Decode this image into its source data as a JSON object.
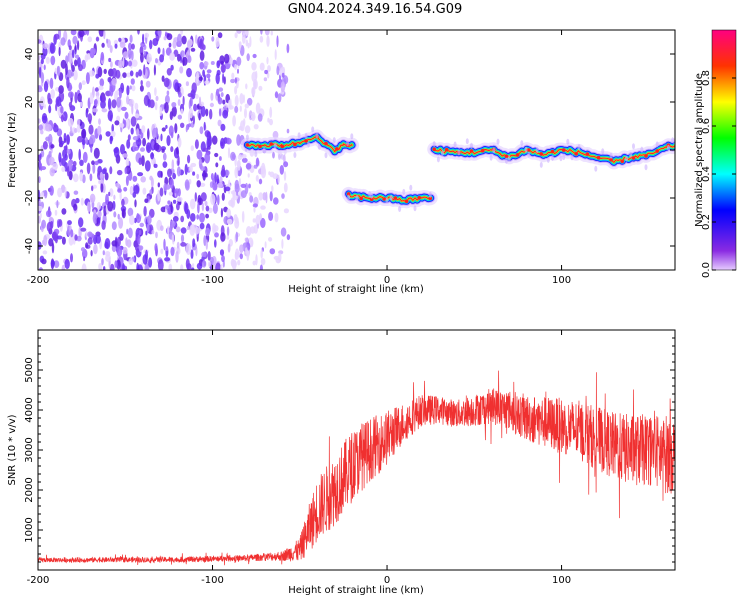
{
  "title": "GN04.2024.349.16.54.G09",
  "chart_data": [
    {
      "type": "heatmap",
      "xlabel": "Height of straight line (km)",
      "ylabel": "Frequency (Hz)",
      "xlim": [
        -200,
        165
      ],
      "ylim": [
        -50,
        50
      ],
      "xticks": [
        -200,
        -100,
        0,
        100
      ],
      "yticks": [
        -40,
        -20,
        0,
        20,
        40
      ],
      "colorbar": {
        "label": "Normalized spectral amplitude",
        "range": [
          0,
          1
        ],
        "ticks": [
          "0.0",
          "0.2",
          "0.4",
          "0.6",
          "0.8"
        ]
      },
      "noise_region_x": [
        -200,
        -55
      ],
      "trace_segments": [
        {
          "x": [
            -80,
            -70,
            -60,
            -50,
            -45,
            -40,
            -35,
            -30,
            -25,
            -20
          ],
          "y": [
            2,
            2,
            2,
            3,
            5,
            5,
            2,
            0,
            2,
            2
          ]
        },
        {
          "x": [
            -22,
            -10,
            0,
            10,
            20,
            25
          ],
          "y": [
            -19,
            -20,
            -20,
            -21,
            -20,
            -20
          ]
        },
        {
          "x": [
            27,
            40,
            50,
            60,
            70,
            80,
            90,
            100,
            110,
            120,
            130,
            140,
            150,
            160,
            165
          ],
          "y": [
            0,
            -1,
            -1,
            0,
            -3,
            0,
            -2,
            0,
            -1,
            -3,
            -5,
            -3,
            -2,
            1,
            2
          ]
        }
      ]
    },
    {
      "type": "line",
      "xlabel": "Height of straight line (km)",
      "ylabel": "SNR (10 * v/v)",
      "xlim": [
        -200,
        165
      ],
      "ylim": [
        0,
        6000
      ],
      "xticks": [
        -200,
        -100,
        0,
        100
      ],
      "yticks": [
        1000,
        2000,
        3000,
        4000,
        5000
      ],
      "series_color": "#f03030",
      "envelope": {
        "x": [
          -200,
          -120,
          -80,
          -60,
          -50,
          -45,
          -40,
          -30,
          -25,
          -20,
          -10,
          0,
          10,
          20,
          30,
          40,
          50,
          60,
          70,
          80,
          90,
          100,
          110,
          120,
          130,
          140,
          150,
          160,
          165
        ],
        "mean": [
          250,
          260,
          300,
          350,
          500,
          1000,
          1500,
          2000,
          2300,
          2600,
          3000,
          3300,
          3700,
          4000,
          4000,
          3900,
          4000,
          4100,
          4000,
          3800,
          3700,
          3600,
          3500,
          3300,
          3100,
          3000,
          3000,
          2900,
          2900
        ],
        "spread": [
          60,
          70,
          80,
          120,
          300,
          600,
          800,
          900,
          900,
          900,
          800,
          700,
          500,
          400,
          350,
          350,
          400,
          450,
          500,
          600,
          650,
          700,
          750,
          800,
          850,
          900,
          900,
          1000,
          1000
        ]
      }
    }
  ],
  "colors": {
    "noise": "#7a3df0",
    "trace_core": "#ff2020",
    "trace_mid": "#20e080",
    "trace_outer": "#1a28ff",
    "snr_line": "#f03030"
  }
}
